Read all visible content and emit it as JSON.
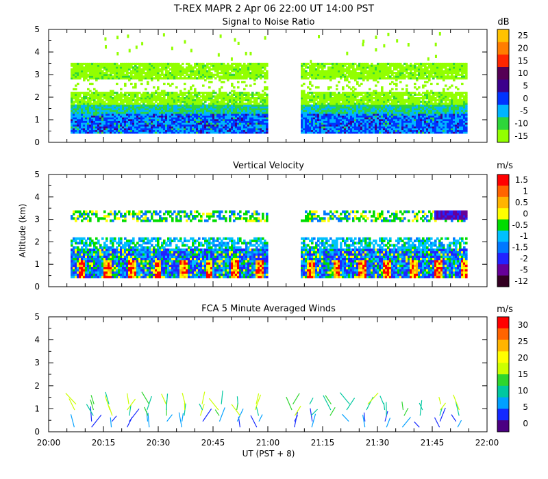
{
  "header": {
    "main_title": "T-REX  MAPR  2 Apr 06  22:00 UT  14:00  PST"
  },
  "chart_data": [
    {
      "type": "heatmap",
      "id": "snr",
      "title": "Signal to Noise Ratio",
      "units": "dB",
      "xlim": [
        0,
        120
      ],
      "ylim": [
        0,
        5
      ],
      "yticks": [
        "0",
        "1",
        "2",
        "3",
        "4",
        "5"
      ],
      "colorbar_labels": [
        "25",
        "20",
        "15",
        "10",
        "5",
        "0",
        "-5",
        "-10",
        "-15"
      ],
      "colorbar_colors": [
        "#ffc200",
        "#ff7d00",
        "#ff2600",
        "#550055",
        "#3b008c",
        "#0033ff",
        "#00b4ff",
        "#2ed63a",
        "#92ff00"
      ],
      "data_gap_minutes": [
        60,
        69
      ],
      "layers_km": [
        {
          "from": 0.4,
          "to": 1.6,
          "band": "low-blue"
        },
        {
          "from": 1.6,
          "to": 2.2,
          "band": "green"
        },
        {
          "from": 2.8,
          "to": 3.5,
          "band": "green"
        }
      ]
    },
    {
      "type": "heatmap",
      "id": "vv",
      "title": "Vertical Velocity",
      "units": "m/s",
      "ylabel": "Altitude (km)",
      "xlim": [
        0,
        120
      ],
      "ylim": [
        0,
        5
      ],
      "yticks": [
        "0",
        "1",
        "2",
        "3",
        "4",
        "5"
      ],
      "colorbar_labels": [
        "1.5",
        "1",
        "0.5",
        "0",
        "-0.5",
        "-1",
        "-1.5",
        "-2",
        "-5",
        "-12"
      ],
      "colorbar_colors": [
        "#ff0000",
        "#ff6400",
        "#ffb400",
        "#ffff00",
        "#00dc00",
        "#00c0ff",
        "#0078ff",
        "#2222ff",
        "#660099",
        "#330022"
      ],
      "data_gap_minutes": [
        60,
        69
      ]
    },
    {
      "type": "scatter",
      "id": "winds",
      "title": "FCA 5 Minute Averaged Winds",
      "units": "m/s",
      "xlabel": "UT  (PST + 8)",
      "xlim": [
        0,
        120
      ],
      "ylim": [
        0,
        5
      ],
      "yticks": [
        "0",
        "1",
        "2",
        "3",
        "4",
        "5"
      ],
      "xticks": [
        "20:00",
        "20:15",
        "20:30",
        "20:45",
        "21:00",
        "21:15",
        "21:30",
        "21:45",
        "22:00"
      ],
      "colorbar_labels": [
        "30",
        "25",
        "20",
        "15",
        "10",
        "5",
        "0"
      ],
      "colorbar_colors": [
        "#ff0000",
        "#ff6400",
        "#ffb400",
        "#ffff00",
        "#ccff00",
        "#2ed62e",
        "#00c8a0",
        "#00a0ff",
        "#1428ff",
        "#4b0082"
      ],
      "wind_times_minutes": [
        7,
        12,
        17,
        22,
        27,
        32,
        37,
        42,
        47,
        52,
        57,
        67,
        72,
        77,
        82,
        87,
        92,
        97,
        102,
        107,
        112
      ],
      "wind_altitudes_km": [
        0.2,
        0.45,
        0.7,
        0.95,
        1.2
      ]
    }
  ]
}
